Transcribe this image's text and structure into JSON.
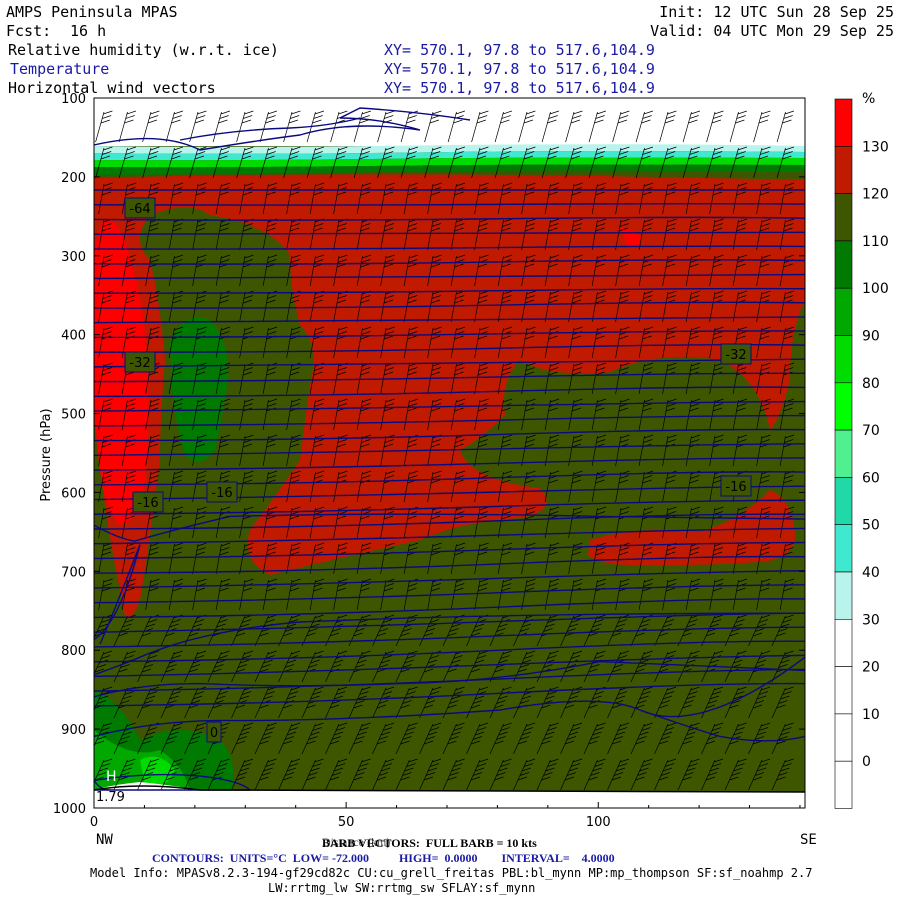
{
  "header": {
    "title_left": "AMPS Peninsula MPAS",
    "fcst_label": "Fcst:",
    "fcst_value": "16 h",
    "init": "Init: 12 UTC Sun 28 Sep 25",
    "valid": "Valid: 04 UTC Mon 29 Sep 25"
  },
  "fields": [
    {
      "name": "Relative humidity (w.r.t. ice)",
      "xy": "XY= 570.1, 97.8 to 517.6,104.9"
    },
    {
      "name": "Temperature",
      "xy": "XY= 570.1, 97.8 to 517.6,104.9"
    },
    {
      "name": "Horizontal wind vectors",
      "xy": "XY= 570.1, 97.8 to 517.6,104.9"
    }
  ],
  "chart_data": {
    "type": "heatmap",
    "ylabel": "Pressure (hPa)",
    "xlabel": "Distance (km)",
    "x_ticks": [
      "0",
      "50",
      "100"
    ],
    "x_tick_values": [
      0,
      50,
      100
    ],
    "y_ticks": [
      "100",
      "200",
      "300",
      "400",
      "500",
      "600",
      "700",
      "800",
      "900",
      "1000"
    ],
    "y_tick_values": [
      100,
      200,
      300,
      400,
      500,
      600,
      700,
      800,
      900,
      1000
    ],
    "xlim": [
      0,
      141
    ],
    "ylim": [
      100,
      1000
    ],
    "left_end": "NW",
    "right_end": "SE",
    "colorbar": {
      "unit": "%",
      "levels": [
        "130",
        "120",
        "110",
        "100",
        "90",
        "80",
        "70",
        "60",
        "50",
        "40",
        "30",
        "20",
        "10",
        "0"
      ],
      "colors": [
        "#ff0000",
        "#c01a00",
        "#3f5600",
        "#007a00",
        "#00a800",
        "#00dc00",
        "#00ff00",
        "#50f090",
        "#20d8a8",
        "#40e8d0",
        "#b8f4ec",
        "#ffffff",
        "#ffffff",
        "#ffffff",
        "#ffffff"
      ]
    },
    "temperature_contours": {
      "labels": [
        "-64",
        "-32",
        "-32",
        "-16",
        "-16",
        "-16",
        "0"
      ],
      "units": "°C",
      "low": -72.0,
      "high": 0.0,
      "interval": 4.0
    },
    "surface_marks": [
      "H",
      "1.79"
    ]
  },
  "footer": {
    "barb_line": "BARB VECTORS:  FULL BARB = 10 kts",
    "distance_label": "Distance (km)",
    "contours_line": "CONTOURS:  UNITS=°C  LOW= -72.000          HIGH=  0.0000        INTERVAL=    4.0000",
    "model_info": "Model Info: MPASv8.2.3-194-gf29cd82c CU:cu_grell_freitas PBL:bl_mynn MP:mp_thompson SF:sf_noahmp 2.7",
    "model_info_2": "LW:rrtmg_lw SW:rrtmg_sw SFLAY:sf_mynn"
  },
  "colors": {
    "rh_very_high": "#ff0000",
    "rh_high": "#c01a00",
    "rh_mid": "#3f5600",
    "contour": "#0a0a80"
  }
}
